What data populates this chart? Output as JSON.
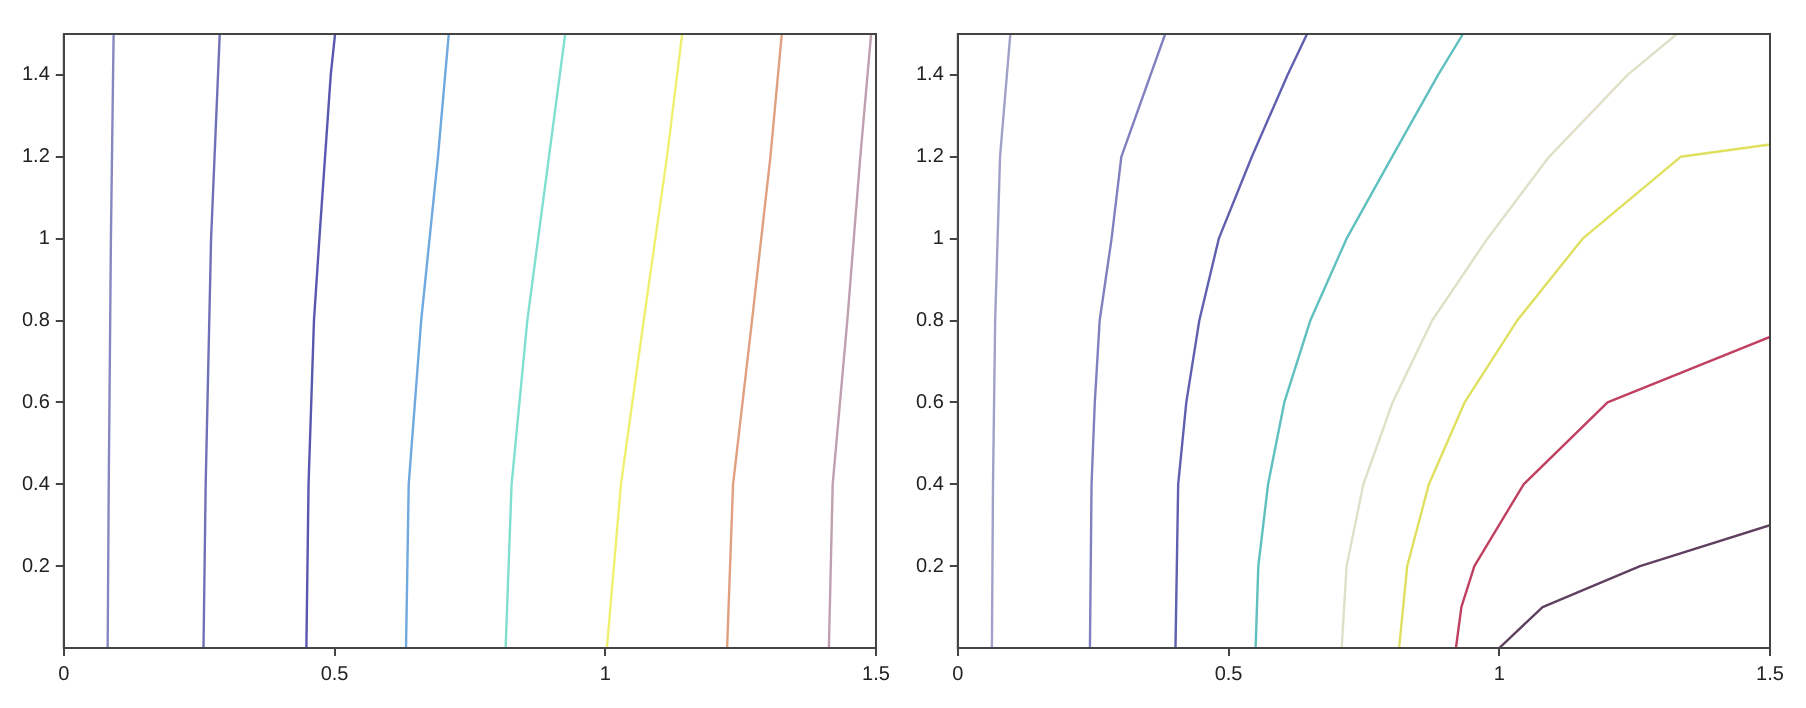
{
  "chart_data": [
    {
      "type": "line",
      "xlim": [
        0,
        1.5
      ],
      "ylim": [
        0,
        1.5
      ],
      "xticks": [
        0,
        0.5,
        1,
        1.5
      ],
      "yticks": [
        0.2,
        0.4,
        0.6,
        0.8,
        1,
        1.2,
        1.4
      ],
      "marker": "none",
      "legend": false,
      "series": [
        {
          "color": "#8888c0",
          "x": [
            0.081,
            0.083,
            0.087,
            0.092
          ],
          "values": [
            0,
            0.4,
            1.0,
            1.5
          ]
        },
        {
          "color": "#7070b8",
          "x": [
            0.258,
            0.262,
            0.272,
            0.288
          ],
          "values": [
            0,
            0.4,
            1.0,
            1.5
          ]
        },
        {
          "color": "#5858b0",
          "x": [
            0.448,
            0.452,
            0.462,
            0.472,
            0.493,
            0.501
          ],
          "values": [
            0,
            0.4,
            0.8,
            1.0,
            1.4,
            1.5
          ]
        },
        {
          "color": "#70a8e0",
          "x": [
            0.632,
            0.637,
            0.66,
            0.691,
            0.711
          ],
          "values": [
            0,
            0.4,
            0.8,
            1.2,
            1.5
          ]
        },
        {
          "color": "#80e0d0",
          "x": [
            0.816,
            0.827,
            0.856,
            0.896,
            0.926
          ],
          "values": [
            0,
            0.4,
            0.8,
            1.2,
            1.5
          ]
        },
        {
          "color": "#f0f070",
          "x": [
            1.003,
            1.029,
            1.071,
            1.114,
            1.142
          ],
          "values": [
            0,
            0.4,
            0.8,
            1.2,
            1.5
          ]
        },
        {
          "color": "#e0a080",
          "x": [
            1.225,
            1.236,
            1.271,
            1.305,
            1.326
          ],
          "values": [
            0,
            0.4,
            0.8,
            1.2,
            1.5
          ]
        },
        {
          "color": "#c0a0b0",
          "x": [
            1.413,
            1.42,
            1.447,
            1.471,
            1.491
          ],
          "values": [
            0,
            0.4,
            0.8,
            1.2,
            1.5
          ]
        }
      ]
    },
    {
      "type": "line",
      "xlim": [
        0,
        1.5
      ],
      "ylim": [
        0,
        1.5
      ],
      "xticks": [
        0,
        0.5,
        1,
        1.5
      ],
      "yticks": [
        0.2,
        0.4,
        0.6,
        0.8,
        1,
        1.2,
        1.4
      ],
      "marker": "none",
      "legend": false,
      "series": [
        {
          "color": "#a0a0c8",
          "x": [
            0.063,
            0.065,
            0.069,
            0.078,
            0.097
          ],
          "values": [
            0,
            0.4,
            0.8,
            1.2,
            1.5
          ]
        },
        {
          "color": "#8080c0",
          "x": [
            0.244,
            0.247,
            0.253,
            0.262,
            0.284,
            0.302,
            0.356,
            0.383
          ],
          "values": [
            0,
            0.4,
            0.6,
            0.8,
            1.0,
            1.2,
            1.4,
            1.5
          ]
        },
        {
          "color": "#6060b0",
          "x": [
            0.402,
            0.407,
            0.422,
            0.446,
            0.482,
            0.543,
            0.609,
            0.645
          ],
          "values": [
            0,
            0.4,
            0.6,
            0.8,
            1.0,
            1.2,
            1.4,
            1.5
          ]
        },
        {
          "color": "#60c0c0",
          "x": [
            0.55,
            0.555,
            0.573,
            0.603,
            0.651,
            0.718,
            0.802,
            0.887,
            0.933
          ],
          "values": [
            0,
            0.2,
            0.4,
            0.6,
            0.8,
            1.0,
            1.2,
            1.4,
            1.5
          ]
        },
        {
          "color": "#e0e0c8",
          "x": [
            0.709,
            0.718,
            0.749,
            0.803,
            0.876,
            0.978,
            1.092,
            1.237,
            1.328
          ],
          "values": [
            0,
            0.2,
            0.4,
            0.6,
            0.8,
            1.0,
            1.2,
            1.4,
            1.5
          ]
        },
        {
          "color": "#e0e060",
          "x": [
            0.815,
            0.83,
            0.87,
            0.936,
            1.033,
            1.154,
            1.335,
            1.5
          ],
          "values": [
            0,
            0.2,
            0.4,
            0.6,
            0.8,
            1.0,
            1.2,
            1.23
          ]
        },
        {
          "color": "#c04060",
          "x": [
            0.92,
            0.93,
            0.954,
            1.045,
            1.2,
            1.5
          ],
          "values": [
            0,
            0.1,
            0.2,
            0.4,
            0.6,
            0.76
          ]
        },
        {
          "color": "#604060",
          "x": [
            1.0,
            1.08,
            1.26,
            1.5
          ],
          "values": [
            0,
            0.1,
            0.2,
            0.3
          ]
        }
      ]
    }
  ]
}
